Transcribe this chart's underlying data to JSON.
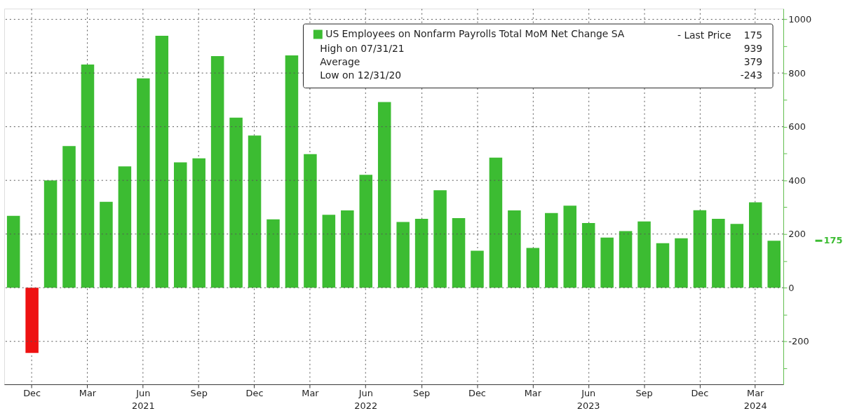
{
  "chart_data": {
    "type": "bar",
    "categories": [
      null,
      "Dec",
      null,
      null,
      "Mar",
      null,
      null,
      "Jun 2021",
      null,
      null,
      "Sep",
      null,
      null,
      "Dec",
      null,
      null,
      "Mar",
      null,
      null,
      "Jun 2022",
      null,
      null,
      "Sep",
      null,
      null,
      "Dec",
      null,
      null,
      "Mar",
      null,
      null,
      "Jun 2023",
      null,
      null,
      "Sep",
      null,
      null,
      "Dec",
      null,
      null,
      "Mar 2024",
      null
    ],
    "series": [
      {
        "name": "US Employees on Nonfarm Payrolls Total MoM Net Change SA",
        "values": [
          268,
          -243,
          400,
          528,
          832,
          320,
          452,
          780,
          939,
          467,
          482,
          863,
          634,
          567,
          255,
          866,
          498,
          272,
          288,
          421,
          692,
          245,
          257,
          363,
          259,
          138,
          485,
          288,
          148,
          278,
          306,
          241,
          187,
          211,
          247,
          166,
          184,
          289,
          257,
          238,
          318,
          175
        ],
        "colors": [
          "#3cbc32",
          "#ee1111",
          "#3cbc32",
          "#3cbc32",
          "#3cbc32",
          "#3cbc32",
          "#3cbc32",
          "#3cbc32",
          "#3cbc32",
          "#3cbc32",
          "#3cbc32",
          "#3cbc32",
          "#3cbc32",
          "#3cbc32",
          "#3cbc32",
          "#3cbc32",
          "#3cbc32",
          "#3cbc32",
          "#3cbc32",
          "#3cbc32",
          "#3cbc32",
          "#3cbc32",
          "#3cbc32",
          "#3cbc32",
          "#3cbc32",
          "#3cbc32",
          "#3cbc32",
          "#3cbc32",
          "#3cbc32",
          "#3cbc32",
          "#3cbc32",
          "#3cbc32",
          "#3cbc32",
          "#3cbc32",
          "#3cbc32",
          "#3cbc32",
          "#3cbc32",
          "#3cbc32",
          "#3cbc32",
          "#3cbc32",
          "#3cbc32",
          "#3cbc32"
        ]
      }
    ],
    "ylim": [
      -360,
      1040
    ],
    "yticks": [
      {
        "value": -300,
        "label": null
      },
      -200,
      {
        "value": -100,
        "label": null
      },
      0,
      {
        "value": 100,
        "label": null
      },
      200,
      {
        "value": 300,
        "label": null
      },
      400,
      {
        "value": 500,
        "label": null
      },
      600,
      {
        "value": 700,
        "label": null
      },
      800,
      {
        "value": 900,
        "label": null
      },
      1000
    ],
    "grid": true,
    "legend": "top right",
    "ref_lines": [
      {
        "axis": "y",
        "value": 175,
        "label": "175",
        "color": "#3cbc32"
      }
    ],
    "annotations": [
      "- Last Price",
      "175",
      "High on 07/31/21",
      "939",
      "Average",
      "379",
      "Low on 12/31/20",
      "-243"
    ]
  }
}
